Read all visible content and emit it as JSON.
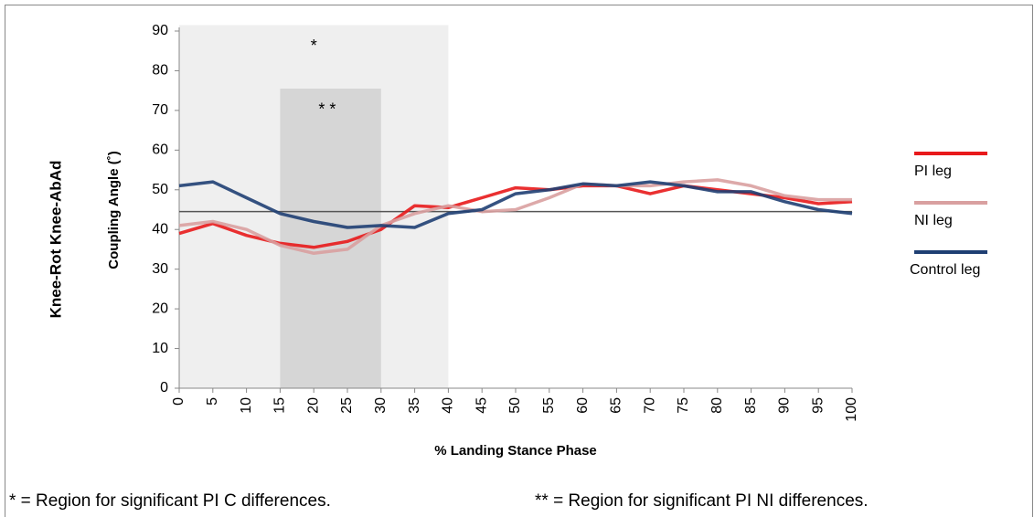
{
  "chart_data": {
    "type": "line",
    "outer_label": "Knee-Rot Knee-AbAd",
    "y_label": "Coupling Angle (˚)",
    "x_label": "% Landing Stance Phase",
    "x": [
      0,
      5,
      10,
      15,
      20,
      25,
      30,
      35,
      40,
      45,
      50,
      55,
      60,
      65,
      70,
      75,
      80,
      85,
      90,
      95,
      100
    ],
    "series": [
      {
        "name": "PI leg",
        "color": "#e8191b",
        "values": [
          39,
          41.5,
          38.5,
          36.5,
          35.5,
          37,
          40,
          46,
          45.5,
          48,
          50.5,
          50,
          51,
          51,
          49,
          51,
          50,
          49,
          48,
          46.5,
          47
        ]
      },
      {
        "name": "NI leg",
        "color": "#d9a0a0",
        "values": [
          41,
          42,
          40,
          36,
          34,
          35,
          41,
          44,
          46,
          44.5,
          45,
          48,
          51.5,
          51,
          51,
          52,
          52.5,
          51,
          48.5,
          47.5,
          47.5
        ]
      },
      {
        "name": "Control leg",
        "color": "#1f3f73",
        "values": [
          51,
          52,
          48,
          44,
          42,
          40.5,
          41,
          40.5,
          44,
          45,
          49,
          50,
          51.5,
          51,
          52,
          51,
          49.5,
          49.5,
          47,
          45,
          44
        ]
      }
    ],
    "reference_line": {
      "value": 44.5,
      "color": "#555555"
    },
    "regions": [
      {
        "x": [
          0,
          40
        ],
        "top": 91.5,
        "color": "#efefef"
      },
      {
        "x": [
          15,
          30
        ],
        "top": 75.5,
        "color": "#d6d6d6"
      }
    ],
    "annotations": [
      {
        "text": "*",
        "x": 20,
        "y": 86
      },
      {
        "text": "* *",
        "x": 22,
        "y": 70
      }
    ],
    "xlim": [
      0,
      100
    ],
    "xticks": [
      0,
      5,
      10,
      15,
      20,
      25,
      30,
      35,
      40,
      45,
      50,
      55,
      60,
      65,
      70,
      75,
      80,
      85,
      90,
      95,
      100
    ],
    "ylim": [
      0,
      90
    ],
    "yticks": [
      0,
      10,
      20,
      30,
      40,
      50,
      60,
      70,
      80,
      90
    ],
    "legend": "right",
    "footnotes": [
      "* = Region for significant PI C differences.",
      "** = Region for significant PI NI differences."
    ]
  }
}
